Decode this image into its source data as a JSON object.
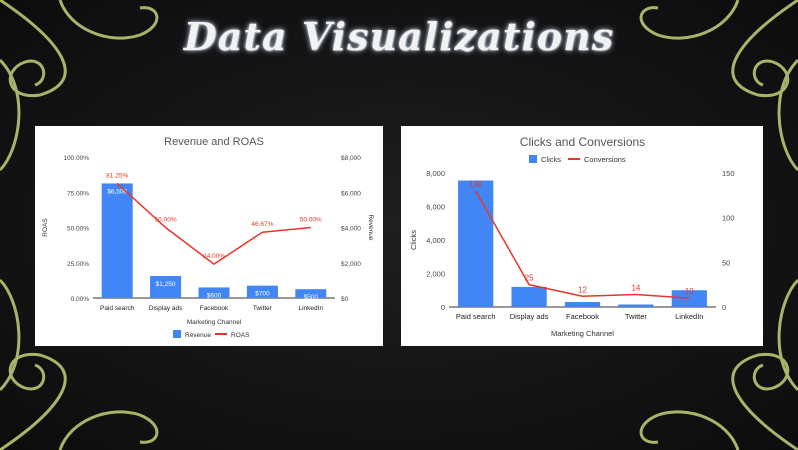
{
  "slide": {
    "title": "Data Visualizations"
  },
  "colors": {
    "bar": "#4285f4",
    "line": "#e8372a",
    "ornament": "#a9b46a",
    "axis_text": "#444444"
  },
  "chart_data": [
    {
      "type": "bar",
      "title": "Revenue and ROAS",
      "categories": [
        "Paid search",
        "Display ads",
        "Facebook",
        "Twitter",
        "LinkedIn"
      ],
      "series": [
        {
          "name": "Revenue",
          "type": "bar",
          "axis": "right",
          "values": [
            6500,
            1250,
            600,
            700,
            500
          ],
          "labels": [
            "$6,500",
            "$1,250",
            "$600",
            "$700",
            "$500"
          ]
        },
        {
          "name": "ROAS",
          "type": "line",
          "axis": "left",
          "values": [
            81.25,
            50.0,
            24.0,
            46.67,
            50.0
          ],
          "labels": [
            "81.25%",
            "50.00%",
            "24.00%",
            "46.67%",
            "50.00%"
          ]
        }
      ],
      "xlabel": "Marketing Channel",
      "ylabel_left": "ROAS",
      "ylabel_right": "Revenue",
      "ylim_left": [
        0,
        100
      ],
      "ylim_right": [
        0,
        8000
      ],
      "yticks_left": [
        "0.00%",
        "25.00%",
        "50.00%",
        "75.00%",
        "100.00%"
      ],
      "yticks_right": [
        "$0",
        "$2,000",
        "$4,000",
        "$6,000",
        "$8,000"
      ],
      "legend_position": "bottom",
      "grid": false
    },
    {
      "type": "bar",
      "title": "Clicks and Conversions",
      "categories": [
        "Paid search",
        "Display ads",
        "Facebook",
        "Twitter",
        "LinkedIn"
      ],
      "series": [
        {
          "name": "Clicks",
          "type": "bar",
          "axis": "left",
          "values": [
            7550,
            1200,
            300,
            150,
            1000
          ]
        },
        {
          "name": "Conversions",
          "type": "line",
          "axis": "right",
          "values": [
            130,
            25,
            12,
            14,
            10
          ],
          "labels": [
            "130",
            "25",
            "12",
            "14",
            "10"
          ]
        }
      ],
      "xlabel": "Marketing Channel",
      "ylabel_left": "Clicks",
      "ylabel_right": "",
      "ylim_left": [
        0,
        8000
      ],
      "ylim_right": [
        0,
        150
      ],
      "yticks_left": [
        "0",
        "2,000",
        "4,000",
        "6,000",
        "8,000"
      ],
      "yticks_right": [
        "0",
        "50",
        "100",
        "150"
      ],
      "legend_position": "top",
      "grid": false
    }
  ]
}
